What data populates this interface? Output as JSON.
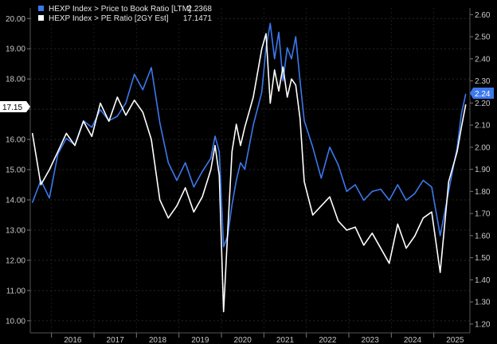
{
  "chart_data": {
    "type": "line",
    "legend": [
      {
        "series": "HEXP Index > Price to Book Ratio [LTM]",
        "value": "2.2368",
        "color": "#3c78ee"
      },
      {
        "series": "HEXP Index > PE Ratio [2GY Est]",
        "value": "17.1471",
        "color": "#ffffff"
      }
    ],
    "legend_position": "top-left",
    "x_ticks": [
      "2016",
      "2017",
      "2018",
      "2019",
      "2020",
      "2021",
      "2022",
      "2023",
      "2024",
      "2025"
    ],
    "left_axis": {
      "label": "",
      "ylim": [
        9.6,
        20.35
      ],
      "ticks": [
        "10.00",
        "11.00",
        "12.00",
        "13.00",
        "14.00",
        "15.00",
        "16.00",
        "17.00",
        "18.00",
        "19.00",
        "20.00"
      ],
      "last_value_tag": "17.15"
    },
    "right_axis": {
      "label": "",
      "ylim": [
        1.16,
        2.63
      ],
      "ticks": [
        "1.20",
        "1.30",
        "1.40",
        "1.50",
        "1.60",
        "1.70",
        "1.80",
        "1.90",
        "2.00",
        "2.10",
        "2.20",
        "2.30",
        "2.40",
        "2.50",
        "2.60"
      ],
      "last_value_tag": "2.24"
    },
    "series": [
      {
        "name": "HEXP Index > Price to Book Ratio [LTM]",
        "axis": "right",
        "color": "#3c78ee",
        "x": [
          2015.55,
          2015.75,
          2015.95,
          2016.15,
          2016.35,
          2016.55,
          2016.75,
          2016.95,
          2017.15,
          2017.35,
          2017.55,
          2017.75,
          2017.95,
          2018.15,
          2018.35,
          2018.55,
          2018.75,
          2018.95,
          2019.15,
          2019.35,
          2019.55,
          2019.75,
          2019.85,
          2019.95,
          2020.05,
          2020.15,
          2020.25,
          2020.35,
          2020.45,
          2020.55,
          2020.75,
          2020.95,
          2021.05,
          2021.15,
          2021.25,
          2021.35,
          2021.45,
          2021.55,
          2021.65,
          2021.75,
          2021.85,
          2021.95,
          2022.15,
          2022.35,
          2022.55,
          2022.75,
          2022.95,
          2023.15,
          2023.35,
          2023.55,
          2023.75,
          2023.95,
          2024.15,
          2024.35,
          2024.55,
          2024.75,
          2024.95,
          2025.15,
          2025.35,
          2025.55,
          2025.65,
          2025.75
        ],
        "y": [
          1.75,
          1.85,
          1.77,
          1.97,
          2.04,
          2.01,
          2.12,
          2.09,
          2.17,
          2.12,
          2.14,
          2.2,
          2.33,
          2.26,
          2.36,
          2.11,
          1.93,
          1.85,
          1.93,
          1.82,
          1.89,
          1.95,
          2.05,
          1.98,
          1.55,
          1.6,
          1.74,
          1.85,
          1.93,
          1.9,
          2.1,
          2.25,
          2.45,
          2.56,
          2.4,
          2.52,
          2.3,
          2.45,
          2.4,
          2.5,
          2.3,
          2.12,
          2.0,
          1.86,
          2.0,
          1.92,
          1.8,
          1.83,
          1.76,
          1.8,
          1.81,
          1.76,
          1.83,
          1.76,
          1.79,
          1.85,
          1.82,
          1.6,
          1.8,
          2.0,
          2.15,
          2.24
        ]
      },
      {
        "name": "HEXP Index > PE Ratio [2GY Est]",
        "axis": "left",
        "color": "#ffffff",
        "x": [
          2015.55,
          2015.75,
          2015.95,
          2016.15,
          2016.35,
          2016.55,
          2016.75,
          2016.95,
          2017.15,
          2017.35,
          2017.55,
          2017.75,
          2017.95,
          2018.15,
          2018.35,
          2018.55,
          2018.75,
          2018.95,
          2019.15,
          2019.35,
          2019.55,
          2019.75,
          2019.85,
          2019.95,
          2020.05,
          2020.15,
          2020.25,
          2020.35,
          2020.45,
          2020.55,
          2020.75,
          2020.95,
          2021.05,
          2021.15,
          2021.25,
          2021.35,
          2021.45,
          2021.55,
          2021.65,
          2021.75,
          2021.85,
          2021.95,
          2022.15,
          2022.35,
          2022.55,
          2022.75,
          2022.95,
          2023.15,
          2023.35,
          2023.55,
          2023.75,
          2023.95,
          2024.15,
          2024.35,
          2024.55,
          2024.75,
          2024.95,
          2025.15,
          2025.35,
          2025.55,
          2025.65,
          2025.75
        ],
        "y": [
          16.2,
          14.5,
          15.0,
          15.6,
          16.2,
          15.8,
          16.6,
          16.1,
          17.2,
          16.6,
          17.4,
          16.8,
          17.3,
          16.9,
          16.0,
          14.0,
          13.4,
          13.8,
          14.4,
          13.6,
          14.1,
          15.0,
          15.8,
          14.8,
          10.3,
          13.0,
          15.6,
          16.5,
          15.8,
          16.4,
          17.4,
          19.0,
          19.5,
          17.2,
          18.3,
          17.6,
          18.4,
          17.4,
          18.0,
          17.8,
          16.7,
          14.6,
          13.5,
          13.8,
          14.1,
          13.3,
          13.0,
          13.1,
          12.5,
          12.9,
          12.4,
          11.9,
          13.2,
          12.4,
          12.8,
          13.4,
          13.6,
          11.6,
          14.6,
          15.6,
          16.4,
          17.15
        ]
      }
    ]
  }
}
